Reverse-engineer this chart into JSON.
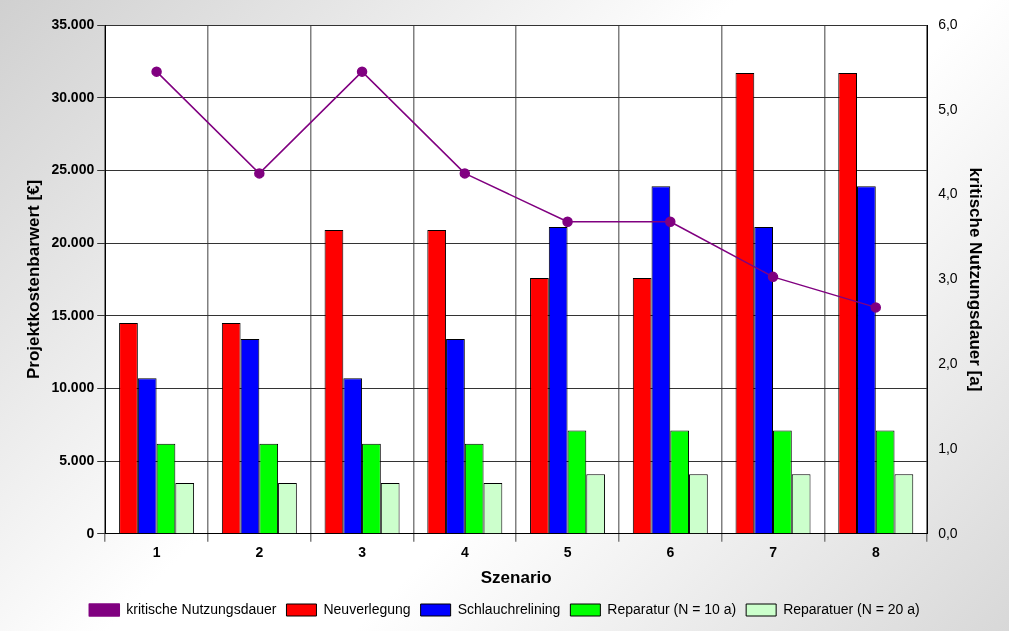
{
  "chart_data": {
    "type": "bar",
    "xlabel": "Szenario",
    "ylabel": "Projektkostenbarwert [€]",
    "y2label": "kritische Nutzungsdauer [a]",
    "categories": [
      "1",
      "2",
      "3",
      "4",
      "5",
      "6",
      "7",
      "8"
    ],
    "series": [
      {
        "name": "Neuverlegung",
        "color": "#ff0000",
        "values": [
          14500,
          14500,
          20900,
          20900,
          17600,
          17600,
          31700,
          31700
        ]
      },
      {
        "name": "Schlauchrelining",
        "color": "#0000ff",
        "values": [
          10700,
          13400,
          10700,
          13400,
          21100,
          23900,
          21100,
          23900
        ]
      },
      {
        "name": "Reparatur (N = 10 a)",
        "color": "#00ff00",
        "values": [
          6200,
          6200,
          6200,
          6200,
          7100,
          7100,
          7100,
          7100
        ]
      },
      {
        "name": "Reparatuer (N = 20 a)",
        "color": "#ccffcc",
        "values": [
          3500,
          3500,
          3500,
          3500,
          4100,
          4100,
          4100,
          4100
        ]
      },
      {
        "name": "kritische Nutzungsdauer",
        "type": "line",
        "axis": "y2",
        "color": "#800080",
        "values": [
          5.45,
          4.25,
          5.45,
          4.25,
          3.68,
          3.68,
          3.03,
          2.67
        ]
      }
    ],
    "ylim": [
      0,
      35000
    ],
    "yticks": [
      {
        "value": 0,
        "label": "0"
      },
      {
        "value": 5000,
        "label": "5.000"
      },
      {
        "value": 10000,
        "label": "10.000"
      },
      {
        "value": 15000,
        "label": "15.000"
      },
      {
        "value": 20000,
        "label": "20.000"
      },
      {
        "value": 25000,
        "label": "25.000"
      },
      {
        "value": 30000,
        "label": "30.000"
      },
      {
        "value": 35000,
        "label": "35.000"
      }
    ],
    "y2lim": [
      0,
      6
    ],
    "y2ticks": [
      {
        "value": 0,
        "label": "0,0"
      },
      {
        "value": 1,
        "label": "1,0"
      },
      {
        "value": 2,
        "label": "2,0"
      },
      {
        "value": 3,
        "label": "3,0"
      },
      {
        "value": 4,
        "label": "4,0"
      },
      {
        "value": 5,
        "label": "5,0"
      },
      {
        "value": 6,
        "label": "6,0"
      }
    ],
    "grid": true,
    "legend": "bottom",
    "marker": "circle"
  }
}
